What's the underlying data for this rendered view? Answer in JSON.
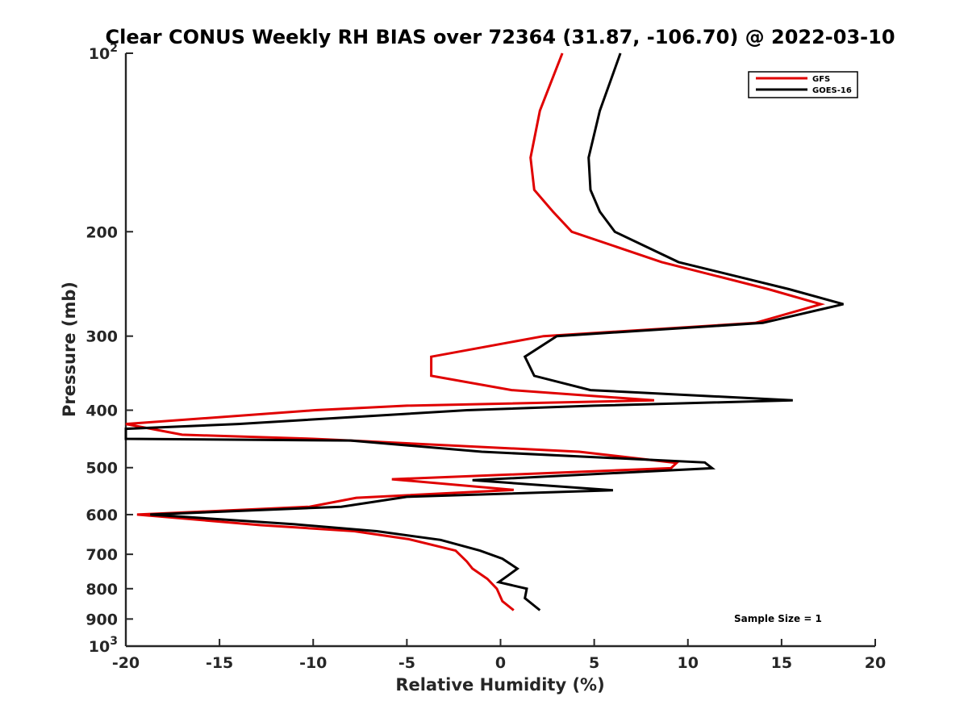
{
  "chart_data": {
    "type": "line",
    "title": "Clear CONUS Weekly RH BIAS over 72364 (31.87, -106.70) @ 2022-03-10",
    "xlabel": "Relative Humidity (%)",
    "ylabel": "Pressure (mb)",
    "xlim": [
      -20,
      20
    ],
    "ylim": [
      100,
      1000
    ],
    "y_scale": "log",
    "y_reversed": true,
    "grid": false,
    "legend_position": "top-right",
    "x_ticks": [
      "-20",
      "-15",
      "-10",
      "-5",
      "0",
      "5",
      "10",
      "15",
      "20"
    ],
    "y_tick_labels": [
      {
        "value": 100,
        "base": "10",
        "exp": "2"
      },
      {
        "value": 200,
        "text": "200"
      },
      {
        "value": 300,
        "text": "300"
      },
      {
        "value": 400,
        "text": "400"
      },
      {
        "value": 500,
        "text": "500"
      },
      {
        "value": 600,
        "text": "600"
      },
      {
        "value": 700,
        "text": "700"
      },
      {
        "value": 800,
        "text": "800"
      },
      {
        "value": 900,
        "text": "900"
      },
      {
        "value": 1000,
        "base": "10",
        "exp": "3"
      }
    ],
    "series": [
      {
        "name": "GFS",
        "color": "#e00000",
        "points": [
          [
            3.3,
            100
          ],
          [
            2.1,
            125
          ],
          [
            1.6,
            150
          ],
          [
            1.8,
            170
          ],
          [
            2.8,
            185
          ],
          [
            3.8,
            200
          ],
          [
            8.6,
            225
          ],
          [
            14.3,
            250
          ],
          [
            17.1,
            265
          ],
          [
            13.6,
            285
          ],
          [
            2.3,
            300
          ],
          [
            -3.7,
            325
          ],
          [
            -3.7,
            350
          ],
          [
            0.6,
            370
          ],
          [
            8.2,
            385
          ],
          [
            -5.0,
            393
          ],
          [
            -9.9,
            400
          ],
          [
            -20.0,
            422
          ],
          [
            -17.0,
            440
          ],
          [
            -10.0,
            447
          ],
          [
            -8.0,
            450
          ],
          [
            4.2,
            470
          ],
          [
            9.4,
            491
          ],
          [
            9.1,
            501
          ],
          [
            -5.8,
            523
          ],
          [
            0.7,
            545
          ],
          [
            -7.7,
            562
          ],
          [
            -10.2,
            582
          ],
          [
            -19.4,
            600
          ],
          [
            -12.8,
            625
          ],
          [
            -7.8,
            640
          ],
          [
            -4.9,
            660
          ],
          [
            -2.4,
            690
          ],
          [
            -1.8,
            720
          ],
          [
            -1.5,
            740
          ],
          [
            -0.7,
            770
          ],
          [
            -0.2,
            800
          ],
          [
            0.1,
            840
          ],
          [
            0.7,
            870
          ]
        ]
      },
      {
        "name": "GOES-16",
        "color": "#000000",
        "points": [
          [
            6.4,
            100
          ],
          [
            5.3,
            125
          ],
          [
            4.7,
            150
          ],
          [
            4.8,
            170
          ],
          [
            5.3,
            185
          ],
          [
            6.1,
            200
          ],
          [
            9.5,
            225
          ],
          [
            15.4,
            250
          ],
          [
            18.3,
            265
          ],
          [
            14.0,
            285
          ],
          [
            3.0,
            300
          ],
          [
            1.3,
            325
          ],
          [
            1.8,
            350
          ],
          [
            4.8,
            370
          ],
          [
            15.6,
            385
          ],
          [
            5.0,
            393
          ],
          [
            -1.8,
            400
          ],
          [
            -14.0,
            422
          ],
          [
            -20.0,
            430
          ],
          [
            -20.0,
            447
          ],
          [
            -8.0,
            450
          ],
          [
            -1.0,
            470
          ],
          [
            10.9,
            490
          ],
          [
            11.3,
            501
          ],
          [
            -1.5,
            525
          ],
          [
            6.0,
            546
          ],
          [
            -5.0,
            560
          ],
          [
            -8.5,
            582
          ],
          [
            -18.7,
            600
          ],
          [
            -11.0,
            623
          ],
          [
            -6.6,
            640
          ],
          [
            -3.2,
            662
          ],
          [
            -1.1,
            690
          ],
          [
            0.1,
            712
          ],
          [
            0.9,
            740
          ],
          [
            0.4,
            760
          ],
          [
            -0.1,
            780
          ],
          [
            1.4,
            800
          ],
          [
            1.3,
            830
          ],
          [
            2.1,
            870
          ]
        ]
      }
    ],
    "annotations": [
      "Sample Size = 1"
    ]
  }
}
